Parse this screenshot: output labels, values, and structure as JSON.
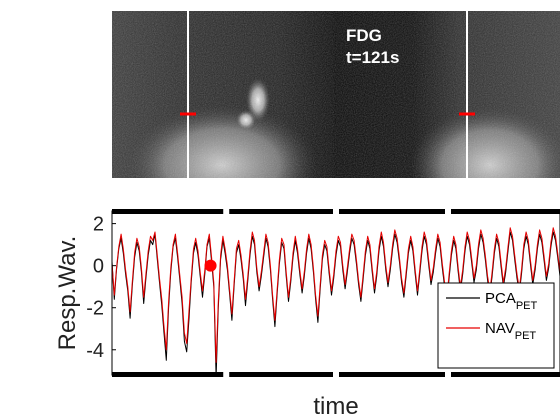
{
  "image_panel": {
    "label_line1": "FDG",
    "label_line2": "t=121s",
    "colors": {
      "cursor": "#ffffff",
      "marker": "#ff0000",
      "background": "#000000"
    }
  },
  "chart_data": {
    "type": "line",
    "xlabel": "time",
    "ylabel": "Resp.Wav.",
    "ylim": [
      -5.2,
      2.6
    ],
    "yticks": [
      -4,
      -2,
      0,
      2
    ],
    "ytick_labels": [
      "-4",
      "-2",
      "0",
      "2"
    ],
    "x_range": [
      0,
      200
    ],
    "grid": false,
    "legend": {
      "location": "bottom-right"
    },
    "current_point": {
      "x": 44,
      "y": 0.0
    },
    "series": [
      {
        "name": "PCA_PET",
        "name_main": "PCA",
        "name_sub": "PET",
        "color": "#000000",
        "values": [
          0.2,
          -1.6,
          -0.2,
          0.8,
          1.3,
          0.6,
          -0.4,
          -1.2,
          -2.5,
          -0.9,
          0.4,
          1.1,
          0.7,
          -0.3,
          -1.8,
          -0.6,
          0.5,
          1.2,
          1.0,
          1.5,
          0.3,
          -0.8,
          -1.9,
          -3.2,
          -4.5,
          -2.0,
          -0.3,
          0.9,
          1.3,
          0.4,
          -0.7,
          -1.8,
          -3.6,
          -4.1,
          -2.6,
          -0.8,
          0.6,
          1.1,
          0.5,
          -0.5,
          -1.5,
          -0.4,
          0.9,
          1.3,
          0.2,
          -1.0,
          -5.3,
          -2.0,
          0.3,
          1.2,
          0.6,
          -0.2,
          -1.4,
          -2.6,
          -0.9,
          0.6,
          1.0,
          0.3,
          -0.6,
          -1.9,
          -0.7,
          0.5,
          1.4,
          1.0,
          -0.3,
          -1.2,
          -0.5,
          0.4,
          1.3,
          0.9,
          -0.2,
          -1.6,
          -2.9,
          -1.3,
          0.1,
          1.1,
          0.8,
          -0.5,
          -1.7,
          -0.8,
          0.4,
          1.2,
          0.6,
          -0.4,
          -1.3,
          -0.5,
          0.6,
          1.3,
          0.8,
          -0.3,
          -1.6,
          -2.7,
          -1.1,
          0.3,
          1.0,
          0.7,
          -0.4,
          -1.4,
          -0.6,
          0.5,
          1.2,
          0.9,
          -0.2,
          -1.1,
          -0.3,
          0.6,
          1.3,
          1.0,
          0.1,
          -0.9,
          -1.7,
          -0.6,
          0.5,
          1.2,
          0.8,
          -0.3,
          -1.3,
          -0.5,
          0.7,
          1.4,
          0.9,
          -0.2,
          -1.0,
          -0.2,
          0.8,
          1.5,
          1.1,
          0.2,
          -0.8,
          -1.5,
          -0.5,
          0.6,
          1.2,
          0.7,
          -0.4,
          -1.4,
          -0.4,
          0.7,
          1.4,
          1.0,
          0.0,
          -0.9,
          -0.3,
          0.6,
          1.3,
          0.9,
          -0.1,
          -1.0,
          -1.7,
          -0.6,
          0.5,
          1.2,
          0.8,
          -0.3,
          -1.2,
          -0.4,
          0.7,
          1.4,
          1.0,
          0.1,
          -0.8,
          -0.2,
          0.8,
          1.5,
          1.1,
          0.3,
          -0.7,
          -1.4,
          -0.5,
          0.6,
          1.3,
          0.9,
          -0.1,
          -1.0,
          -0.3,
          0.7,
          1.6,
          1.2,
          0.3,
          -0.6,
          -1.3,
          -0.4,
          0.8,
          1.4,
          1.0,
          0.0,
          -0.9,
          -0.2,
          0.8,
          1.5,
          1.1,
          0.2,
          -0.7,
          -0.1,
          0.9,
          1.6,
          1.2,
          0.4,
          -0.5
        ]
      },
      {
        "name": "NAV_PET",
        "name_main": "NAV",
        "name_sub": "PET",
        "color": "#e60000",
        "values": [
          0.1,
          -1.4,
          -0.1,
          0.9,
          1.5,
          0.8,
          -0.2,
          -1.0,
          -2.2,
          -0.7,
          0.6,
          1.3,
          0.9,
          -0.1,
          -1.5,
          -0.4,
          0.7,
          1.4,
          1.2,
          1.6,
          0.5,
          -0.6,
          -1.6,
          -2.9,
          -4.0,
          -1.7,
          -0.1,
          1.0,
          1.5,
          0.6,
          -0.5,
          -1.5,
          -3.2,
          -3.7,
          -2.2,
          -0.6,
          0.8,
          1.3,
          0.7,
          -0.3,
          -1.2,
          -0.2,
          1.0,
          1.5,
          0.4,
          -0.8,
          -4.6,
          -1.7,
          0.5,
          1.4,
          0.8,
          0.0,
          -1.2,
          -2.3,
          -0.7,
          0.8,
          1.2,
          0.5,
          -0.4,
          -1.6,
          -0.5,
          0.7,
          1.6,
          1.2,
          -0.1,
          -1.0,
          -0.3,
          0.6,
          1.5,
          1.1,
          0.0,
          -1.4,
          -2.6,
          -1.1,
          0.3,
          1.3,
          1.0,
          -0.3,
          -1.5,
          -0.6,
          0.6,
          1.4,
          0.8,
          -0.2,
          -1.1,
          -0.3,
          0.8,
          1.5,
          1.0,
          -0.1,
          -1.4,
          -2.4,
          -0.9,
          0.5,
          1.2,
          0.9,
          -0.2,
          -1.2,
          -0.4,
          0.7,
          1.4,
          1.1,
          0.0,
          -0.9,
          -0.1,
          0.8,
          1.5,
          1.2,
          0.3,
          -0.7,
          -1.5,
          -0.4,
          0.7,
          1.4,
          1.0,
          -0.1,
          -1.1,
          -0.3,
          0.9,
          1.6,
          1.1,
          0.0,
          -0.8,
          0.0,
          1.0,
          1.7,
          1.3,
          0.4,
          -0.6,
          -1.3,
          -0.3,
          0.8,
          1.4,
          0.9,
          -0.2,
          -1.2,
          -0.2,
          0.9,
          1.6,
          1.2,
          0.2,
          -0.7,
          -0.1,
          0.8,
          1.5,
          1.1,
          0.1,
          -0.8,
          -1.5,
          -0.4,
          0.7,
          1.4,
          1.0,
          -0.1,
          -1.0,
          -0.2,
          0.9,
          1.6,
          1.2,
          0.3,
          -0.6,
          0.0,
          1.0,
          1.7,
          1.3,
          0.5,
          -0.5,
          -1.2,
          -0.3,
          0.8,
          1.5,
          1.1,
          0.1,
          -0.8,
          -0.1,
          0.9,
          1.8,
          1.4,
          0.5,
          -0.4,
          -1.1,
          -0.2,
          1.0,
          1.6,
          1.2,
          0.2,
          -0.7,
          0.0,
          1.0,
          1.7,
          1.3,
          0.4,
          -0.5,
          0.1,
          1.1,
          1.8,
          1.4,
          0.6,
          -0.3
        ]
      }
    ]
  }
}
